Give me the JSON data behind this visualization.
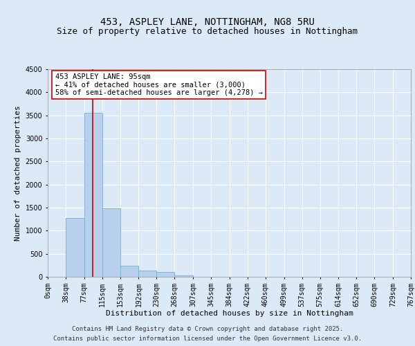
{
  "title_line1": "453, ASPLEY LANE, NOTTINGHAM, NG8 5RU",
  "title_line2": "Size of property relative to detached houses in Nottingham",
  "xlabel": "Distribution of detached houses by size in Nottingham",
  "ylabel": "Number of detached properties",
  "bar_color": "#b8d0eb",
  "bar_edge_color": "#7aaad0",
  "vline_color": "#cc0000",
  "vline_x": 95,
  "annotation_text": "453 ASPLEY LANE: 95sqm\n← 41% of detached houses are smaller (3,000)\n58% of semi-detached houses are larger (4,278) →",
  "annotation_box_facecolor": "#ffffff",
  "annotation_border_color": "#cc0000",
  "bin_edges": [
    0,
    38,
    77,
    115,
    153,
    192,
    230,
    268,
    307,
    345,
    384,
    422,
    460,
    499,
    537,
    575,
    614,
    652,
    690,
    729,
    767
  ],
  "bin_counts": [
    5,
    1270,
    3560,
    1490,
    240,
    140,
    110,
    30,
    5,
    2,
    0,
    1,
    0,
    0,
    0,
    0,
    0,
    0,
    0,
    0
  ],
  "ylim": [
    0,
    4500
  ],
  "yticks": [
    0,
    500,
    1000,
    1500,
    2000,
    2500,
    3000,
    3500,
    4000,
    4500
  ],
  "background_color": "#dce9f7",
  "plot_bg_color": "#dce9f7",
  "grid_color": "#ffffff",
  "footer_line1": "Contains HM Land Registry data © Crown copyright and database right 2025.",
  "footer_line2": "Contains public sector information licensed under the Open Government Licence v3.0.",
  "title_fontsize": 10,
  "subtitle_fontsize": 9,
  "axis_label_fontsize": 8,
  "tick_label_fontsize": 7,
  "annotation_fontsize": 7.5,
  "footer_fontsize": 6.5
}
